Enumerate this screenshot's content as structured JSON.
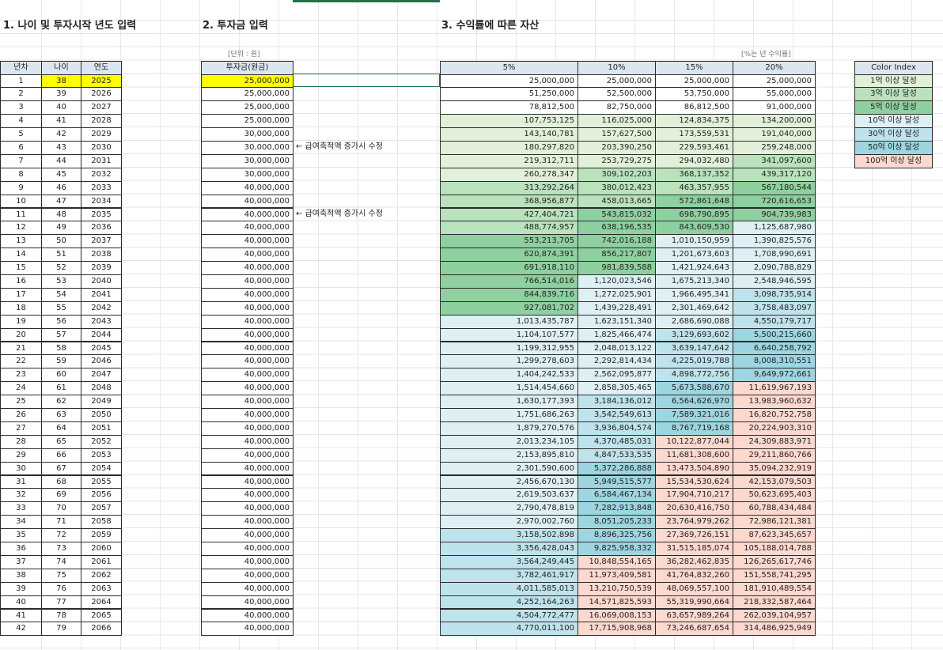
{
  "age_table": {
    "title": "1. 나이 및 투자시작 년도 입력",
    "headers": [
      "년차",
      "나이",
      "연도"
    ],
    "rows": [
      [
        1,
        38,
        2025
      ],
      [
        2,
        39,
        2026
      ],
      [
        3,
        40,
        2027
      ],
      [
        4,
        41,
        2028
      ],
      [
        5,
        42,
        2029
      ],
      [
        6,
        43,
        2030
      ],
      [
        7,
        44,
        2031
      ],
      [
        8,
        45,
        2032
      ],
      [
        9,
        46,
        2033
      ],
      [
        10,
        47,
        2034
      ],
      [
        11,
        48,
        2035
      ],
      [
        12,
        49,
        2036
      ],
      [
        13,
        50,
        2037
      ],
      [
        14,
        51,
        2038
      ],
      [
        15,
        52,
        2039
      ],
      [
        16,
        53,
        2040
      ],
      [
        17,
        54,
        2041
      ],
      [
        18,
        55,
        2042
      ],
      [
        19,
        56,
        2043
      ],
      [
        20,
        57,
        2044
      ],
      [
        21,
        58,
        2045
      ],
      [
        22,
        59,
        2046
      ],
      [
        23,
        60,
        2047
      ],
      [
        24,
        61,
        2048
      ],
      [
        25,
        62,
        2049
      ],
      [
        26,
        63,
        2050
      ],
      [
        27,
        64,
        2051
      ],
      [
        28,
        65,
        2052
      ],
      [
        29,
        66,
        2053
      ],
      [
        30,
        67,
        2054
      ],
      [
        31,
        68,
        2055
      ],
      [
        32,
        69,
        2056
      ],
      [
        33,
        70,
        2057
      ],
      [
        34,
        71,
        2058
      ],
      [
        35,
        72,
        2059
      ],
      [
        36,
        73,
        2060
      ],
      [
        37,
        74,
        2061
      ],
      [
        38,
        75,
        2062
      ],
      [
        39,
        76,
        2063
      ],
      [
        40,
        77,
        2064
      ],
      [
        41,
        78,
        2065
      ],
      [
        42,
        79,
        2066
      ]
    ]
  },
  "investment": {
    "title": "2. 투자금 입력",
    "unit": "[단위 : 원]",
    "header": "투자금(원금)",
    "rows": [
      "25,000,000",
      "25,000,000",
      "25,000,000",
      "25,000,000",
      "30,000,000",
      "30,000,000",
      "30,000,000",
      "30,000,000",
      "40,000,000",
      "40,000,000",
      "40,000,000",
      "40,000,000",
      "40,000,000",
      "40,000,000",
      "40,000,000",
      "40,000,000",
      "40,000,000",
      "40,000,000",
      "40,000,000",
      "40,000,000",
      "40,000,000",
      "40,000,000",
      "40,000,000",
      "40,000,000",
      "40,000,000",
      "40,000,000",
      "40,000,000",
      "40,000,000",
      "40,000,000",
      "40,000,000",
      "40,000,000",
      "40,000,000",
      "40,000,000",
      "40,000,000",
      "40,000,000",
      "40,000,000",
      "40,000,000",
      "40,000,000",
      "40,000,000",
      "40,000,000",
      "40,000,000",
      "40,000,000"
    ],
    "notes": [
      null,
      null,
      null,
      null,
      null,
      "← 급여축적액 증가시 수정",
      null,
      null,
      null,
      null,
      "← 급여축적액 증가시 수정",
      null,
      null,
      null,
      null,
      null,
      null,
      null,
      null,
      null,
      null,
      null,
      null,
      null,
      null,
      null,
      null,
      null,
      null,
      null,
      null,
      null,
      null,
      null,
      null,
      null,
      null,
      null,
      null,
      null,
      null,
      null
    ]
  },
  "returns": {
    "title": "3. 수익률에 따른 자산",
    "unit": "[%는 년 수익률]",
    "headers": [
      "5%",
      "10%",
      "15%",
      "20%"
    ],
    "rows": [
      [
        "25,000,000",
        "25,000,000",
        "25,000,000",
        "25,000,000"
      ],
      [
        "51,250,000",
        "52,500,000",
        "53,750,000",
        "55,000,000"
      ],
      [
        "78,812,500",
        "82,750,000",
        "86,812,500",
        "91,000,000"
      ],
      [
        "107,753,125",
        "116,025,000",
        "124,834,375",
        "134,200,000"
      ],
      [
        "143,140,781",
        "157,627,500",
        "173,559,531",
        "191,040,000"
      ],
      [
        "180,297,820",
        "203,390,250",
        "229,593,461",
        "259,248,000"
      ],
      [
        "219,312,711",
        "253,729,275",
        "294,032,480",
        "341,097,600"
      ],
      [
        "260,278,347",
        "309,102,203",
        "368,137,352",
        "439,317,120"
      ],
      [
        "313,292,264",
        "380,012,423",
        "463,357,955",
        "567,180,544"
      ],
      [
        "368,956,877",
        "458,013,665",
        "572,861,648",
        "720,616,653"
      ],
      [
        "427,404,721",
        "543,815,032",
        "698,790,895",
        "904,739,983"
      ],
      [
        "488,774,957",
        "638,196,535",
        "843,609,530",
        "1,125,687,980"
      ],
      [
        "553,213,705",
        "742,016,188",
        "1,010,150,959",
        "1,390,825,576"
      ],
      [
        "620,874,391",
        "856,217,807",
        "1,201,673,603",
        "1,708,990,691"
      ],
      [
        "691,918,110",
        "981,839,588",
        "1,421,924,643",
        "2,090,788,829"
      ],
      [
        "766,514,016",
        "1,120,023,546",
        "1,675,213,340",
        "2,548,946,595"
      ],
      [
        "844,839,716",
        "1,272,025,901",
        "1,966,495,341",
        "3,098,735,914"
      ],
      [
        "927,081,702",
        "1,439,228,491",
        "2,301,469,642",
        "3,758,483,097"
      ],
      [
        "1,013,435,787",
        "1,623,151,340",
        "2,686,690,088",
        "4,550,179,717"
      ],
      [
        "1,104,107,577",
        "1,825,466,474",
        "3,129,693,602",
        "5,500,215,660"
      ],
      [
        "1,199,312,955",
        "2,048,013,122",
        "3,639,147,642",
        "6,640,258,792"
      ],
      [
        "1,299,278,603",
        "2,292,814,434",
        "4,225,019,788",
        "8,008,310,551"
      ],
      [
        "1,404,242,533",
        "2,562,095,877",
        "4,898,772,756",
        "9,649,972,661"
      ],
      [
        "1,514,454,660",
        "2,858,305,465",
        "5,673,588,670",
        "11,619,967,193"
      ],
      [
        "1,630,177,393",
        "3,184,136,012",
        "6,564,626,970",
        "13,983,960,632"
      ],
      [
        "1,751,686,263",
        "3,542,549,613",
        "7,589,321,016",
        "16,820,752,758"
      ],
      [
        "1,879,270,576",
        "3,936,804,574",
        "8,767,719,168",
        "20,224,903,310"
      ],
      [
        "2,013,234,105",
        "4,370,485,031",
        "10,122,877,044",
        "24,309,883,971"
      ],
      [
        "2,153,895,810",
        "4,847,533,535",
        "11,681,308,600",
        "29,211,860,766"
      ],
      [
        "2,301,590,600",
        "5,372,286,888",
        "13,473,504,890",
        "35,094,232,919"
      ],
      [
        "2,456,670,130",
        "5,949,515,577",
        "15,534,530,624",
        "42,153,079,503"
      ],
      [
        "2,619,503,637",
        "6,584,467,134",
        "17,904,710,217",
        "50,623,695,403"
      ],
      [
        "2,790,478,819",
        "7,282,913,848",
        "20,630,416,750",
        "60,788,434,484"
      ],
      [
        "2,970,002,760",
        "8,051,205,233",
        "23,764,979,262",
        "72,986,121,381"
      ],
      [
        "3,158,502,898",
        "8,896,325,756",
        "27,369,726,151",
        "87,623,345,657"
      ],
      [
        "3,356,428,043",
        "9,825,958,332",
        "31,515,185,074",
        "105,188,014,788"
      ],
      [
        "3,564,249,445",
        "10,848,554,165",
        "36,282,462,835",
        "126,265,617,746"
      ],
      [
        "3,782,461,917",
        "11,973,409,581",
        "41,764,832,260",
        "151,558,741,295"
      ],
      [
        "4,011,585,013",
        "13,210,750,539",
        "48,069,557,100",
        "181,910,489,554"
      ],
      [
        "4,252,164,263",
        "14,571,825,593",
        "55,319,990,664",
        "218,332,587,464"
      ],
      [
        "4,504,772,477",
        "16,069,008,153",
        "63,657,989,264",
        "262,039,104,957"
      ],
      [
        "4,770,011,100",
        "17,715,908,968",
        "73,246,687,654",
        "314,486,925,949"
      ]
    ]
  },
  "color_index": {
    "header": "Color Index",
    "items": [
      {
        "label": "1억 이상 달성",
        "min": 100000000,
        "color": "#e2f0da"
      },
      {
        "label": "3억 이상 달성",
        "min": 300000000,
        "color": "#b9e2bd"
      },
      {
        "label": "5억 이상 달성",
        "min": 500000000,
        "color": "#8ed0a0"
      },
      {
        "label": "10억 이상 달성",
        "min": 1000000000,
        "color": "#dff0f5"
      },
      {
        "label": "30억 이상 달성",
        "min": 3000000000,
        "color": "#bfe3ec"
      },
      {
        "label": "50억 이상 달성",
        "min": 5000000000,
        "color": "#9dd5e1"
      },
      {
        "label": "100억 이상 달성",
        "min": 10000000000,
        "color": "#fcd8cf"
      }
    ]
  },
  "highlight_color": "#ffff00"
}
